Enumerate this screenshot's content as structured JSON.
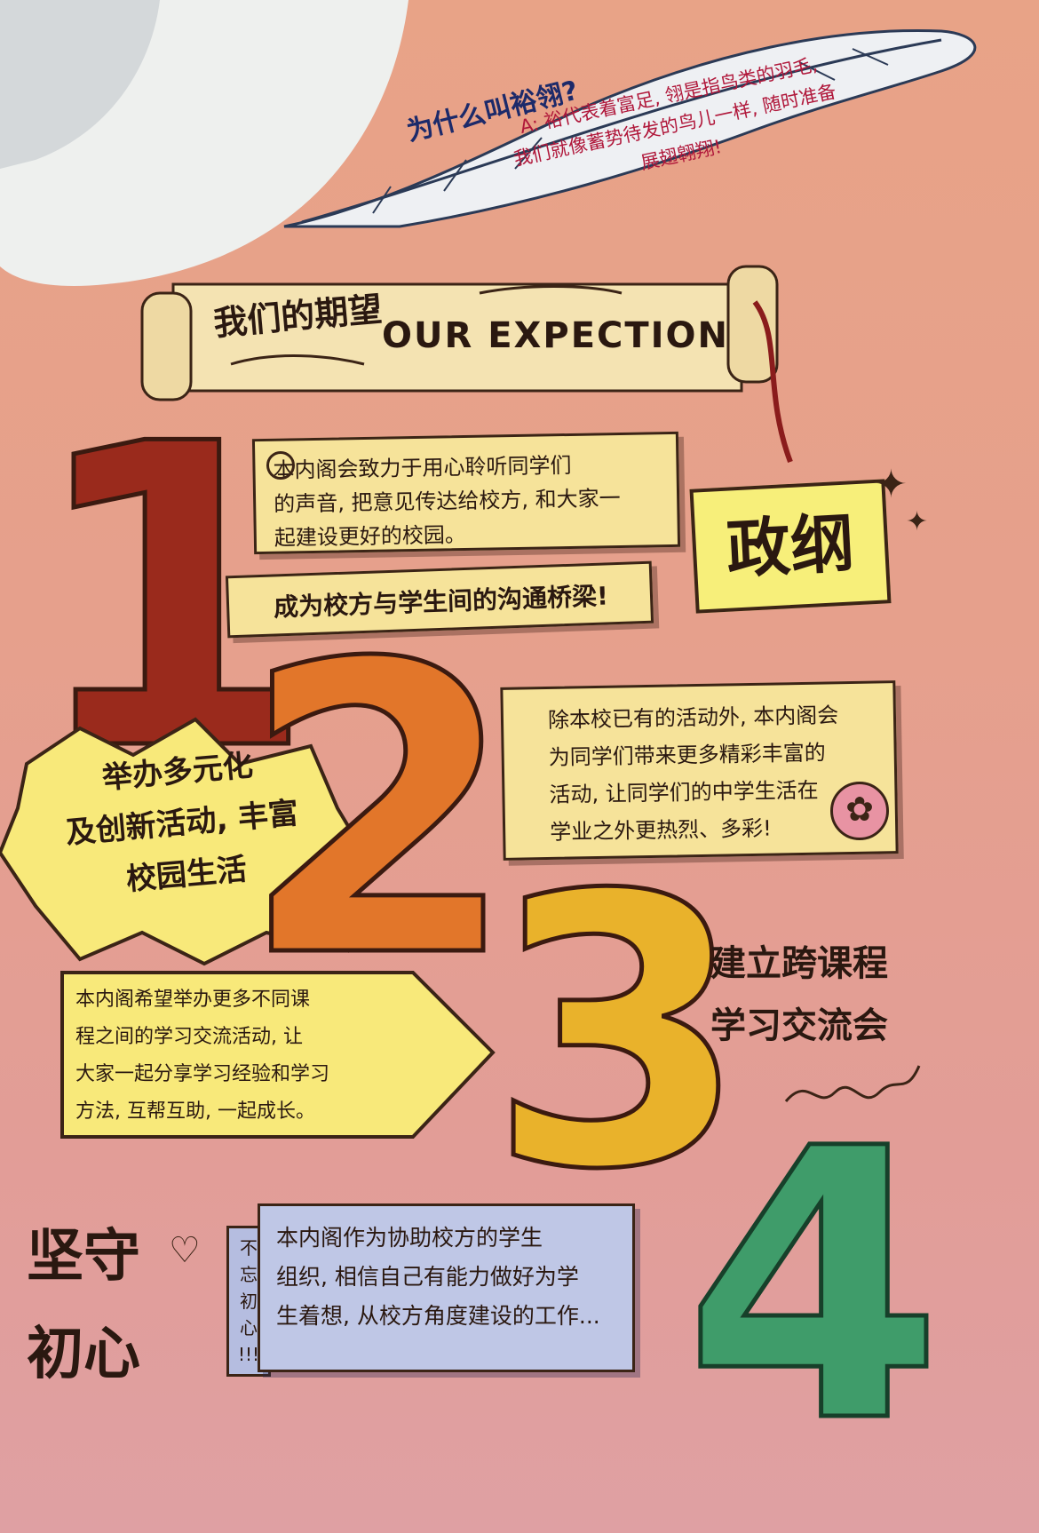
{
  "feather": {
    "question": "为什么叫裕翎?",
    "q_answer": "为什么叫裕翎?",
    "answer_lines": "A: 裕代表着富足, 翎是指鸟类的羽毛,\n我们就像蓄势待发的鸟儿一样, 随时准备\n展翅翱翔!"
  },
  "banner": {
    "title_cn": "我们的期望",
    "title_en": "OUR EXPECTION"
  },
  "platform_label": "政纲",
  "items": [
    {
      "number": "1",
      "color": "#9a2a1c",
      "card_text": "本内阁会致力于用心聆听同学们\n的声音, 把意见传达给校方, 和大家一\n起建设更好的校园。",
      "slogan": "成为校方与学生间的沟通桥梁!"
    },
    {
      "number": "2",
      "color": "#e2762a",
      "burst_text": "举办多元化\n及创新活动, 丰富\n校园生活",
      "card_text": "除本校已有的活动外, 本内阁会\n为同学们带来更多精彩丰富的\n活动, 让同学们的中学生活在\n学业之外更热烈、多彩!"
    },
    {
      "number": "3",
      "color": "#e9b22b",
      "side_text": "建立跨课程\n学习交流会",
      "card_text": "本内阁希望举办更多不同课\n程之间的学习交流活动, 让\n大家一起分享学习经验和学习\n方法, 互帮互助, 一起成长。"
    },
    {
      "number": "4",
      "color": "#3f9c6a",
      "side_text": "坚守\n初心",
      "tag_text": "不忘\n初心\n!!!",
      "card_text": "本内阁作为协助校方的学生\n组织, 相信自己有能力做好为学\n生着想, 从校方角度建设的工作..."
    }
  ]
}
